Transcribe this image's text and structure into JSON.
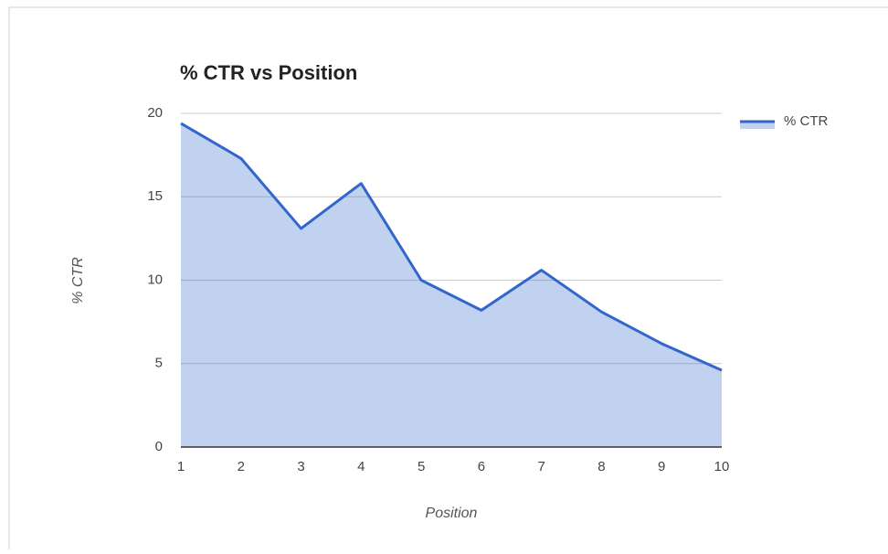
{
  "chart_data": {
    "type": "area",
    "title": "% CTR vs Position",
    "x_label": "Position",
    "y_label": "% CTR",
    "x": [
      1,
      2,
      3,
      4,
      5,
      6,
      7,
      8,
      9,
      10
    ],
    "series": [
      {
        "name": "% CTR",
        "color": "#3366cc",
        "values": [
          19.4,
          17.3,
          13.1,
          15.8,
          10.0,
          8.2,
          10.6,
          8.1,
          6.2,
          4.6
        ]
      }
    ],
    "xlim": [
      1,
      10
    ],
    "xticks": [
      1,
      2,
      3,
      4,
      5,
      6,
      7,
      8,
      9,
      10
    ],
    "ylim": [
      0,
      20
    ],
    "yticks": [
      0,
      5,
      10,
      15,
      20
    ],
    "grid": true,
    "legend": "right"
  }
}
